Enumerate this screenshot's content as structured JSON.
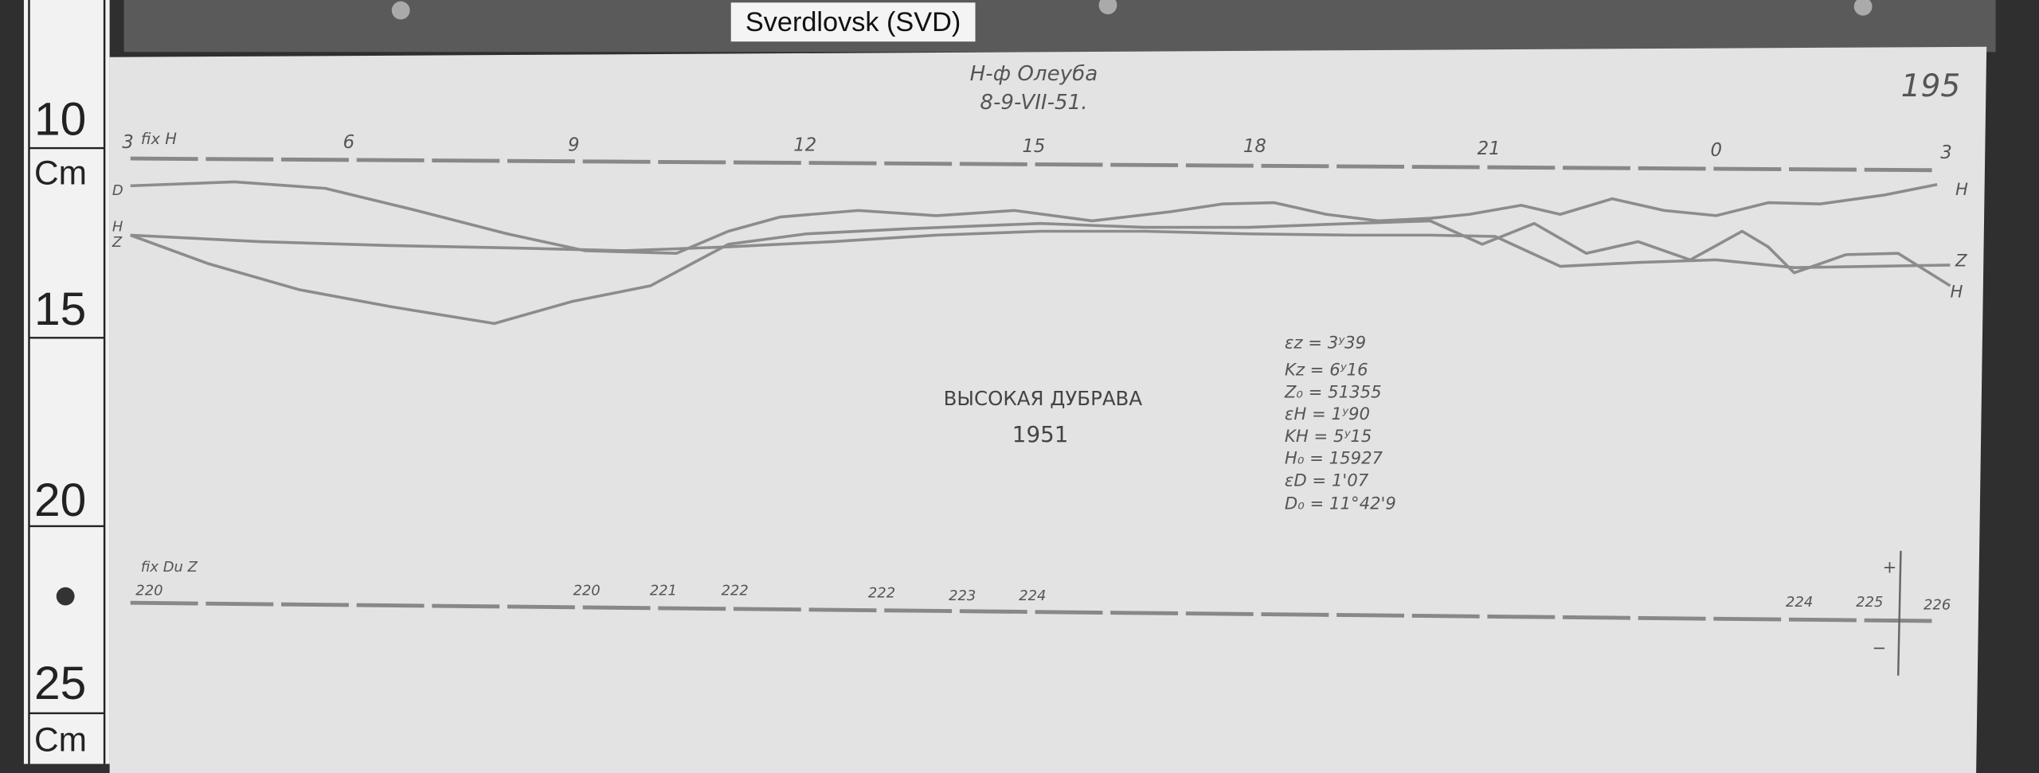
{
  "label": "Sverdlovsk (SVD)",
  "ruler": {
    "marks": [
      "10",
      "Cm",
      "15",
      "20",
      "25",
      "Cm"
    ]
  },
  "header": {
    "station": "Н-ф Олеуба",
    "date": "8-9-VII-51.",
    "sheet": "195"
  },
  "hours": {
    "caption": "fix H",
    "labels": [
      "3",
      "6",
      "9",
      "12",
      "15",
      "18",
      "21",
      "0",
      "3"
    ]
  },
  "traces": {
    "right": [
      "H",
      "Z",
      "H"
    ],
    "left": [
      "D",
      "H",
      "Z"
    ]
  },
  "title": {
    "place": "ВЫСОКАЯ ДУБРАВА",
    "year": "1951"
  },
  "constants": [
    "εz = 3ʸ39",
    "Kz = 6ʸ16",
    "Z₀ = 51355",
    "εH = 1ʸ90",
    "KH = 5ʸ15",
    "H₀ = 15927",
    "εD = 1'07",
    "D₀ = 11°42'9"
  ],
  "baseline": {
    "caption": "fix Du Z",
    "start": "220",
    "labels": [
      "220",
      "221",
      "222",
      "222",
      "223",
      "224",
      "224",
      "225",
      "226"
    ]
  },
  "scale": {
    "plus": "+",
    "minus": "−"
  }
}
